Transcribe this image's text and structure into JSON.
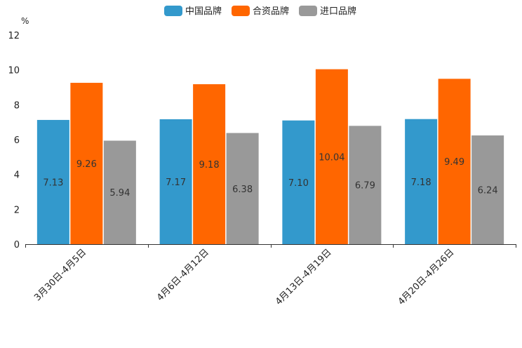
{
  "chart_data": {
    "type": "bar",
    "title": "",
    "ylabel": "%",
    "xlabel": "",
    "ylim": [
      0,
      12
    ],
    "yticks": [
      0,
      2,
      4,
      6,
      8,
      10,
      12
    ],
    "legend_position": "top-center",
    "grid": false,
    "categories": [
      "3月30日-4月5日",
      "4月6日-4月12日",
      "4月13日-4月19日",
      "4月20日-4月26日"
    ],
    "series": [
      {
        "name": "中国品牌",
        "color": "#3399cc",
        "values": [
          7.13,
          7.17,
          7.1,
          7.18
        ]
      },
      {
        "name": "合资品牌",
        "color": "#ff6600",
        "values": [
          9.26,
          9.18,
          10.04,
          9.49
        ]
      },
      {
        "name": "进口品牌",
        "color": "#999999",
        "values": [
          5.94,
          6.38,
          6.79,
          6.24
        ]
      }
    ]
  }
}
